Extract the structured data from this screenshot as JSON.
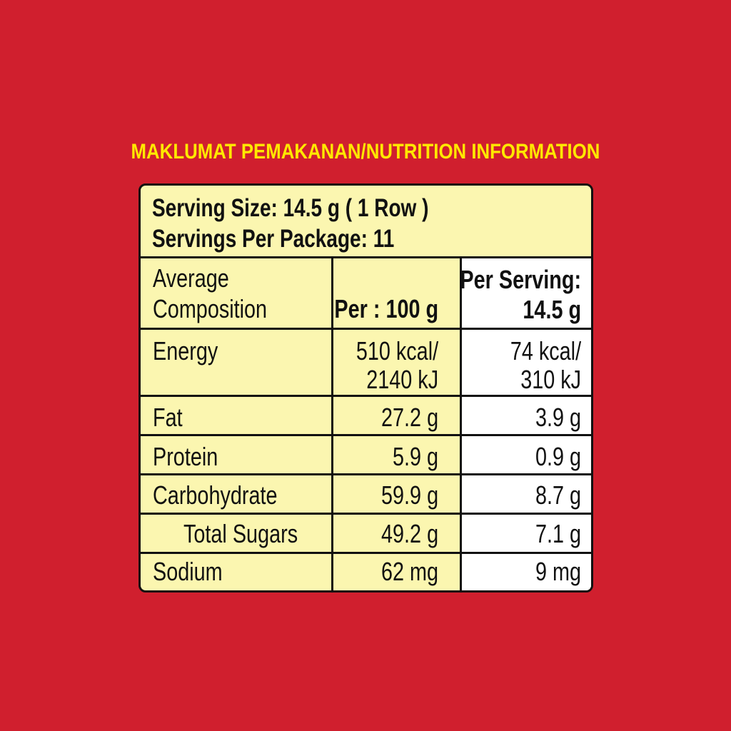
{
  "title": "MAKLUMAT PEMAKANAN/NUTRITION INFORMATION",
  "serving_size": "Serving Size: 14.5 g ( 1 Row )",
  "servings_per_package": "Servings Per Package: 11",
  "columns": {
    "composition_line1": "Average",
    "composition_line2": "Composition",
    "per_100g": "Per : 100 g",
    "per_serving_line1": "Per Serving:",
    "per_serving_line2": "14.5 g"
  },
  "rows": [
    {
      "name": "Energy",
      "per_100g_line1": "510 kcal/",
      "per_100g_line2": "2140 kJ",
      "per_serving_line1": "74 kcal/",
      "per_serving_line2": "310 kJ"
    },
    {
      "name": "Fat",
      "per_100g": "27.2 g",
      "per_serving": "3.9 g"
    },
    {
      "name": "Protein",
      "per_100g": "5.9 g",
      "per_serving": "0.9 g"
    },
    {
      "name": "Carbohydrate",
      "per_100g": "59.9 g",
      "per_serving": "8.7 g"
    },
    {
      "name": "Total Sugars",
      "per_100g": "49.2 g",
      "per_serving": "7.1 g"
    },
    {
      "name": "Sodium",
      "per_100g": "62 mg",
      "per_serving": "9 mg"
    }
  ],
  "colors": {
    "background": "#d01f2e",
    "title": "#ffe800",
    "panel": "#fbf6b0",
    "serving_column": "#ffffff",
    "border": "#111111"
  }
}
